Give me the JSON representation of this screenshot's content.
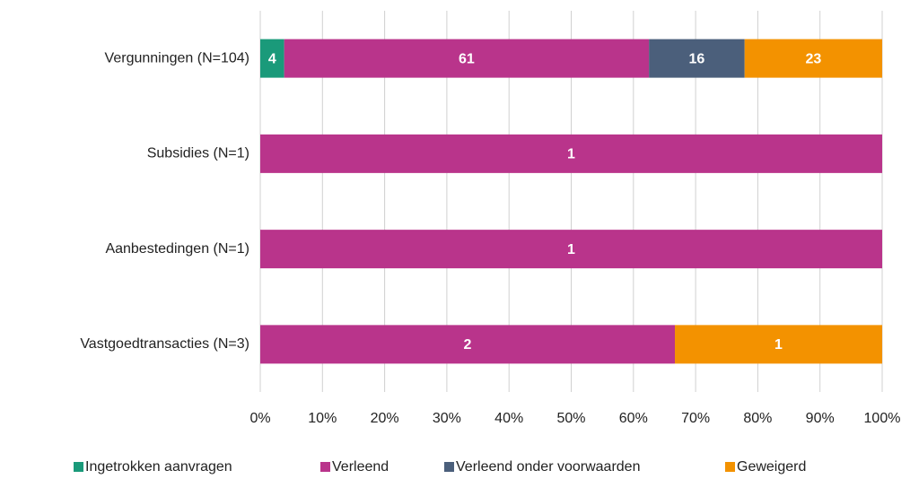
{
  "chart_data": {
    "type": "bar",
    "orientation": "horizontal",
    "stacked": "percent",
    "categories": [
      "Vergunningen (N=104)",
      "Subsidies (N=1)",
      "Aanbestedingen (N=1)",
      "Vastgoedtransacties (N=3)"
    ],
    "series": [
      {
        "name": "Ingetrokken aanvragen",
        "color": "#1a9a7a",
        "values": [
          4,
          0,
          0,
          0
        ]
      },
      {
        "name": "Verleend",
        "color": "#b9348b",
        "values": [
          61,
          1,
          1,
          2
        ]
      },
      {
        "name": "Verleend onder voorwaarden",
        "color": "#4b5f7b",
        "values": [
          16,
          0,
          0,
          0
        ]
      },
      {
        "name": "Geweigerd",
        "color": "#f39200",
        "values": [
          23,
          0,
          0,
          1
        ]
      }
    ],
    "xlim": [
      0,
      100
    ],
    "xticks": [
      {
        "value": 0,
        "label": "0%"
      },
      {
        "value": 10,
        "label": "10%"
      },
      {
        "value": 20,
        "label": "20%"
      },
      {
        "value": 30,
        "label": "30%"
      },
      {
        "value": 40,
        "label": "40%"
      },
      {
        "value": 50,
        "label": "50%"
      },
      {
        "value": 60,
        "label": "60%"
      },
      {
        "value": 70,
        "label": "70%"
      },
      {
        "value": 80,
        "label": "80%"
      },
      {
        "value": 90,
        "label": "90%"
      },
      {
        "value": 100,
        "label": "100%"
      }
    ],
    "grid": true,
    "legend": "bottom"
  }
}
